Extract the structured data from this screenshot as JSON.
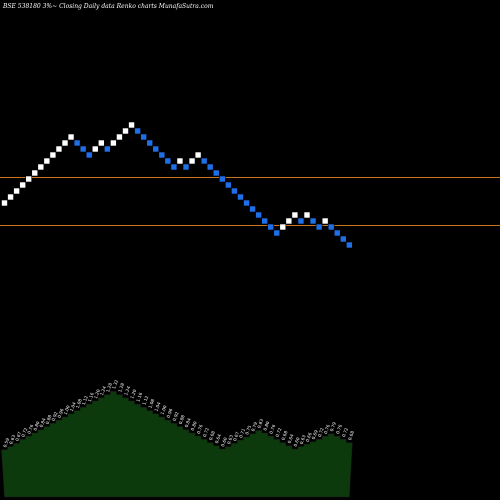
{
  "chart_data": {
    "type": "renko",
    "title": "BSE 538180  3%~  Closing Daily data  Renko  charts MunafaSutra.com",
    "colors": {
      "background": "#000000",
      "up_brick": "#ffffff",
      "down_brick": "#1e6fe8",
      "guide_line": "#c8741a",
      "volume_fill": "#0c3a0c",
      "volume_outline": "#1a1a1a",
      "label_text": "#ffffff"
    },
    "bricks": [
      {
        "i": 0,
        "level": 0,
        "dir": "up"
      },
      {
        "i": 1,
        "level": 1,
        "dir": "up"
      },
      {
        "i": 2,
        "level": 2,
        "dir": "up"
      },
      {
        "i": 3,
        "level": 3,
        "dir": "up"
      },
      {
        "i": 4,
        "level": 4,
        "dir": "up"
      },
      {
        "i": 5,
        "level": 5,
        "dir": "up"
      },
      {
        "i": 6,
        "level": 6,
        "dir": "up"
      },
      {
        "i": 7,
        "level": 7,
        "dir": "up"
      },
      {
        "i": 8,
        "level": 8,
        "dir": "up"
      },
      {
        "i": 9,
        "level": 9,
        "dir": "up"
      },
      {
        "i": 10,
        "level": 10,
        "dir": "up"
      },
      {
        "i": 11,
        "level": 11,
        "dir": "up"
      },
      {
        "i": 12,
        "level": 10,
        "dir": "down"
      },
      {
        "i": 13,
        "level": 9,
        "dir": "down"
      },
      {
        "i": 14,
        "level": 8,
        "dir": "down"
      },
      {
        "i": 15,
        "level": 9,
        "dir": "up"
      },
      {
        "i": 16,
        "level": 10,
        "dir": "up"
      },
      {
        "i": 17,
        "level": 9,
        "dir": "down"
      },
      {
        "i": 18,
        "level": 10,
        "dir": "up"
      },
      {
        "i": 19,
        "level": 11,
        "dir": "up"
      },
      {
        "i": 20,
        "level": 12,
        "dir": "up"
      },
      {
        "i": 21,
        "level": 13,
        "dir": "up"
      },
      {
        "i": 22,
        "level": 12,
        "dir": "down"
      },
      {
        "i": 23,
        "level": 11,
        "dir": "down"
      },
      {
        "i": 24,
        "level": 10,
        "dir": "down"
      },
      {
        "i": 25,
        "level": 9,
        "dir": "down"
      },
      {
        "i": 26,
        "level": 8,
        "dir": "down"
      },
      {
        "i": 27,
        "level": 7,
        "dir": "down"
      },
      {
        "i": 28,
        "level": 6,
        "dir": "down"
      },
      {
        "i": 29,
        "level": 7,
        "dir": "up"
      },
      {
        "i": 30,
        "level": 6,
        "dir": "down"
      },
      {
        "i": 31,
        "level": 7,
        "dir": "up"
      },
      {
        "i": 32,
        "level": 8,
        "dir": "up"
      },
      {
        "i": 33,
        "level": 7,
        "dir": "down"
      },
      {
        "i": 34,
        "level": 6,
        "dir": "down"
      },
      {
        "i": 35,
        "level": 5,
        "dir": "down"
      },
      {
        "i": 36,
        "level": 4,
        "dir": "down"
      },
      {
        "i": 37,
        "level": 3,
        "dir": "down"
      },
      {
        "i": 38,
        "level": 2,
        "dir": "down"
      },
      {
        "i": 39,
        "level": 1,
        "dir": "down"
      },
      {
        "i": 40,
        "level": 0,
        "dir": "down"
      },
      {
        "i": 41,
        "level": -1,
        "dir": "down"
      },
      {
        "i": 42,
        "level": -2,
        "dir": "down"
      },
      {
        "i": 43,
        "level": -3,
        "dir": "down"
      },
      {
        "i": 44,
        "level": -4,
        "dir": "down"
      },
      {
        "i": 45,
        "level": -5,
        "dir": "down"
      },
      {
        "i": 46,
        "level": -4,
        "dir": "up"
      },
      {
        "i": 47,
        "level": -3,
        "dir": "up"
      },
      {
        "i": 48,
        "level": -2,
        "dir": "up"
      },
      {
        "i": 49,
        "level": -3,
        "dir": "down"
      },
      {
        "i": 50,
        "level": -2,
        "dir": "up"
      },
      {
        "i": 51,
        "level": -3,
        "dir": "down"
      },
      {
        "i": 52,
        "level": -4,
        "dir": "down"
      },
      {
        "i": 53,
        "level": -3,
        "dir": "up"
      },
      {
        "i": 54,
        "level": -4,
        "dir": "down"
      },
      {
        "i": 55,
        "level": -5,
        "dir": "down"
      },
      {
        "i": 56,
        "level": -6,
        "dir": "down"
      },
      {
        "i": 57,
        "level": -7,
        "dir": "down"
      }
    ],
    "guide_levels": [
      4,
      -4
    ],
    "volume_labels": [
      "0.59",
      "0.63",
      "0.67",
      "0.72",
      "0.76",
      "0.80",
      "0.84",
      "0.88",
      "0.92",
      "0.96",
      "1.00",
      "1.04",
      "1.08",
      "1.12",
      "1.16",
      "1.20",
      "1.24",
      "1.28",
      "1.32",
      "1.28",
      "1.24",
      "1.20",
      "1.16",
      "1.12",
      "1.08",
      "1.04",
      "1.00",
      "0.96",
      "0.92",
      "0.88",
      "0.84",
      "0.80",
      "0.76",
      "0.72",
      "0.68",
      "0.64",
      "0.60",
      "0.63",
      "0.67",
      "0.71",
      "0.75",
      "0.79",
      "0.83",
      "0.80",
      "0.76",
      "0.72",
      "0.68",
      "0.64",
      "0.60",
      "0.63",
      "0.66",
      "0.69",
      "0.72",
      "0.76",
      "0.79",
      "0.76",
      "0.72",
      "0.68"
    ],
    "volume_values": [
      0.59,
      0.63,
      0.67,
      0.72,
      0.76,
      0.8,
      0.84,
      0.88,
      0.92,
      0.96,
      1.0,
      1.04,
      1.08,
      1.12,
      1.16,
      1.2,
      1.24,
      1.28,
      1.32,
      1.28,
      1.24,
      1.2,
      1.16,
      1.12,
      1.08,
      1.04,
      1.0,
      0.96,
      0.92,
      0.88,
      0.84,
      0.8,
      0.76,
      0.72,
      0.68,
      0.64,
      0.6,
      0.63,
      0.67,
      0.71,
      0.75,
      0.79,
      0.83,
      0.8,
      0.76,
      0.72,
      0.68,
      0.64,
      0.6,
      0.63,
      0.66,
      0.69,
      0.72,
      0.76,
      0.79,
      0.76,
      0.72,
      0.68
    ]
  }
}
